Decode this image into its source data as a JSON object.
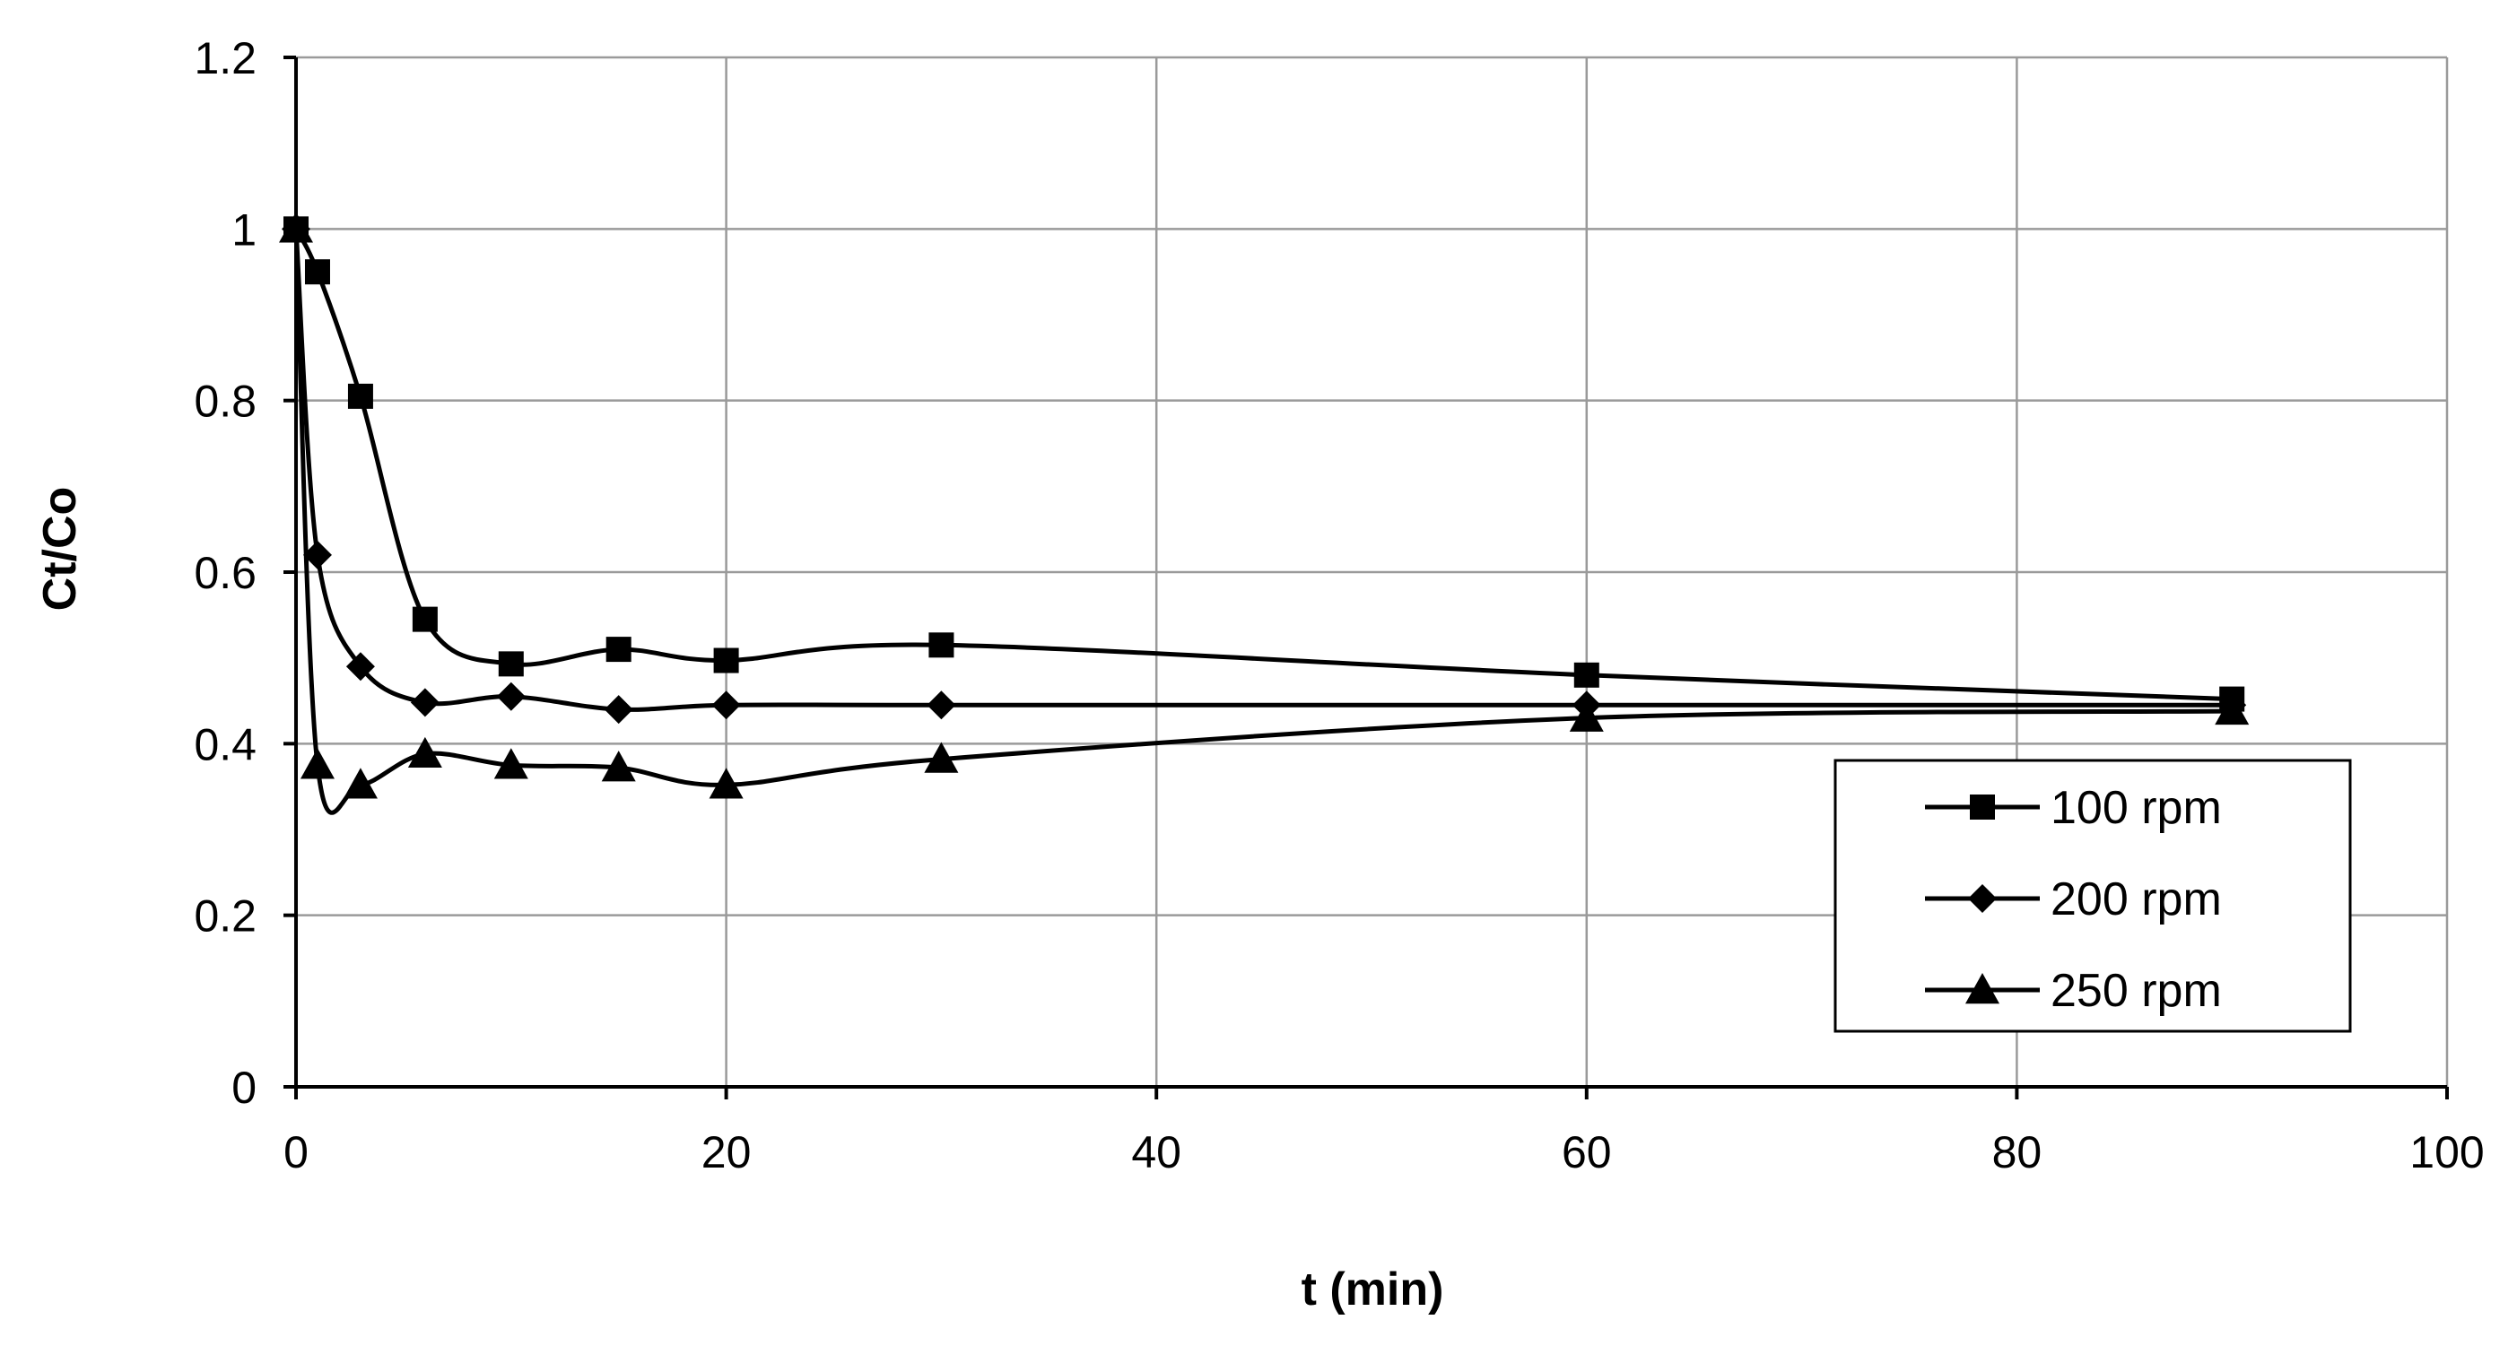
{
  "chart_data": {
    "type": "line",
    "title": "",
    "xlabel": "t (min)",
    "ylabel": "Ct/Co",
    "xlim": [
      0,
      100
    ],
    "ylim": [
      0,
      1.2
    ],
    "xticks": [
      0,
      20,
      40,
      60,
      80,
      100
    ],
    "yticks": [
      0,
      0.2,
      0.4,
      0.6,
      0.8,
      1,
      1.2
    ],
    "xtick_labels": [
      "0",
      "20",
      "40",
      "60",
      "80",
      "100"
    ],
    "ytick_labels": [
      "0",
      "0.2",
      "0.4",
      "0.6",
      "0.8",
      "1",
      "1.2"
    ],
    "grid": true,
    "legend_position": "bottom-right",
    "series": [
      {
        "name": "100 rpm",
        "marker": "square",
        "x": [
          0,
          1,
          3,
          6,
          10,
          15,
          20,
          30,
          60,
          90
        ],
        "y": [
          1.0,
          0.95,
          0.805,
          0.545,
          0.493,
          0.51,
          0.497,
          0.515,
          0.48,
          0.452
        ]
      },
      {
        "name": "200 rpm",
        "marker": "diamond",
        "x": [
          0,
          1,
          3,
          6,
          10,
          15,
          20,
          30,
          60,
          90
        ],
        "y": [
          1.0,
          0.62,
          0.49,
          0.448,
          0.455,
          0.44,
          0.445,
          0.445,
          0.445,
          0.445
        ]
      },
      {
        "name": "250 rpm",
        "marker": "triangle",
        "x": [
          0,
          1,
          3,
          6,
          10,
          15,
          20,
          30,
          60,
          90
        ],
        "y": [
          1.0,
          0.375,
          0.352,
          0.388,
          0.375,
          0.372,
          0.352,
          0.382,
          0.43,
          0.438
        ]
      }
    ]
  }
}
